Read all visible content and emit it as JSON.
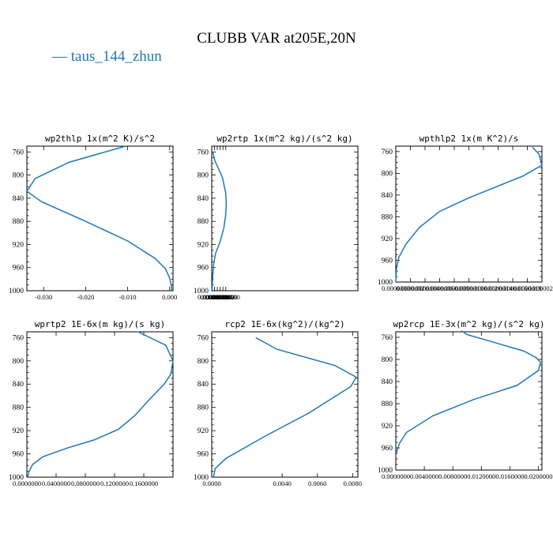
{
  "figure": {
    "title": "CLUBB VAR at205E,20N",
    "legend_label": "— taus_144_zhun",
    "line_color": "#1f77b4"
  },
  "chart_data": [
    {
      "type": "line",
      "title": "wp2thlp  1x(m^2 K)/s^2",
      "xlim": [
        -0.034,
        0.0008
      ],
      "ylim": [
        1000,
        750
      ],
      "y_ticks": [
        "760",
        "800",
        "840",
        "880",
        "920",
        "960",
        "1000"
      ],
      "x_ticks": [
        "-0.030",
        "-0.020",
        "-0.010",
        "0.000"
      ],
      "x_tick_values": [
        -0.03,
        -0.02,
        -0.01,
        0.0
      ],
      "series": [
        {
          "x": [
            -0.0105,
            -0.024,
            -0.032,
            -0.034,
            -0.0305,
            -0.02,
            -0.01,
            -0.0035,
            -0.001,
            0.0,
            0.0004,
            0.0005
          ],
          "y": [
            750,
            778,
            806,
            828,
            846,
            880,
            914,
            944,
            962,
            978,
            992,
            1000
          ]
        }
      ]
    },
    {
      "type": "line",
      "title": "wp2rtp  1x(m^2 kg)/(s^2 kg)",
      "xlim": [
        0,
        0.00052
      ],
      "ylim": [
        1000,
        750
      ],
      "y_ticks": [
        "760",
        "800",
        "840",
        "880",
        "920",
        "960",
        "1000"
      ],
      "x_ticks": [
        "0.0000000",
        "0.0000100",
        "0.0000200",
        "0.0000300",
        "0.0000400",
        "0.0000500"
      ],
      "x_tick_values": [
        0,
        1e-05,
        2e-05,
        3e-05,
        4e-05,
        5e-05
      ],
      "series": [
        {
          "x": [
            4e-06,
            1.1e-05,
            3.8e-05,
            4.95e-05,
            5.2e-05,
            4.95e-05,
            4.3e-05,
            3e-05,
            1.4e-05,
            7e-06,
            4.5e-06,
            2.5e-06,
            1e-06
          ],
          "y": [
            760,
            775,
            804,
            830,
            848,
            870,
            892,
            915,
            935,
            953,
            968,
            985,
            1000
          ]
        }
      ]
    },
    {
      "type": "line",
      "title": "wpthlp2  1x(m K^2)/s",
      "xlim": [
        0,
        2e-06
      ],
      "ylim": [
        1000,
        750
      ],
      "y_ticks": [
        "760",
        "800",
        "840",
        "880",
        "920",
        "960",
        "1000"
      ],
      "x_ticks": [
        "0.0000000",
        "0.0000002",
        "0.0000004",
        "0.0000006",
        "0.0000008",
        "0.0000010",
        "0.0000012",
        "0.0000014",
        "0.0000016",
        "0.0000018",
        "0.0000020"
      ],
      "x_tick_values": [
        0,
        2e-07,
        4e-07,
        6e-07,
        8e-07,
        1e-06,
        1.2e-06,
        1.4e-06,
        1.6e-06,
        1.8e-06,
        2e-06
      ],
      "series": [
        {
          "x": [
            1.87e-06,
            1.96e-06,
            2e-06,
            1.74e-06,
            1e-06,
            6e-07,
            3.2e-07,
            1.4e-07,
            4e-08,
            1e-08,
            0.0
          ],
          "y": [
            752,
            765,
            785,
            805,
            845,
            870,
            900,
            930,
            955,
            975,
            1000
          ]
        }
      ]
    },
    {
      "type": "line",
      "title": "wprtp2  1E-6x(m kg)/(s kg)",
      "xlim": [
        0,
        0.2
      ],
      "ylim": [
        1000,
        750
      ],
      "y_ticks": [
        "760",
        "800",
        "840",
        "880",
        "920",
        "960",
        "1000"
      ],
      "x_ticks": [
        "0.0000000",
        "0.0400000",
        "0.0800000",
        "0.1200000",
        "0.1600000"
      ],
      "x_tick_values": [
        0,
        0.04,
        0.08,
        0.12,
        0.16
      ],
      "series": [
        {
          "x": [
            0.152,
            0.19,
            0.2,
            0.197,
            0.188,
            0.168,
            0.147,
            0.125,
            0.092,
            0.055,
            0.022,
            0.008,
            0.003,
            0.001
          ],
          "y": [
            750,
            773,
            800,
            823,
            840,
            866,
            895,
            918,
            936,
            950,
            965,
            978,
            990,
            1000
          ]
        }
      ]
    },
    {
      "type": "line",
      "title": "rcp2  1E-6x(kg^2)/(kg^2)",
      "xlim": [
        0,
        0.0083
      ],
      "ylim": [
        1000,
        750
      ],
      "y_ticks": [
        "760",
        "800",
        "840",
        "880",
        "920",
        "960",
        "1000"
      ],
      "x_ticks": [
        "0.0000",
        "0.0040",
        "0.0060",
        "0.0080"
      ],
      "x_tick_values": [
        0,
        0.004,
        0.006,
        0.008
      ],
      "series": [
        {
          "x": [
            0.0025,
            0.0037,
            0.007,
            0.0082,
            0.0079,
            0.0055,
            0.003,
            0.0008,
            0.0002,
            0.0001
          ],
          "y": [
            760,
            780,
            808,
            828,
            844,
            890,
            930,
            968,
            985,
            1000
          ]
        }
      ]
    },
    {
      "type": "line",
      "title": "wp2rcp  1E-3x(m^2 kg)/(s^2 kg)",
      "xlim": [
        0,
        0.0205
      ],
      "ylim": [
        1000,
        750
      ],
      "y_ticks": [
        "760",
        "800",
        "840",
        "880",
        "920",
        "960",
        "1000"
      ],
      "x_ticks": [
        "0.0000000",
        "0.0040000",
        "0.0080000",
        "0.0120000",
        "0.0160000",
        "0.0200000"
      ],
      "x_tick_values": [
        0,
        0.004,
        0.008,
        0.012,
        0.016,
        0.02
      ],
      "series": [
        {
          "x": [
            0.0092,
            0.01,
            0.018,
            0.0197,
            0.0203,
            0.02,
            0.017,
            0.011,
            0.0052,
            0.0015,
            0.0005,
            0.0001
          ],
          "y": [
            748,
            755,
            785,
            797,
            805,
            820,
            847,
            872,
            902,
            932,
            952,
            968
          ]
        }
      ]
    }
  ]
}
